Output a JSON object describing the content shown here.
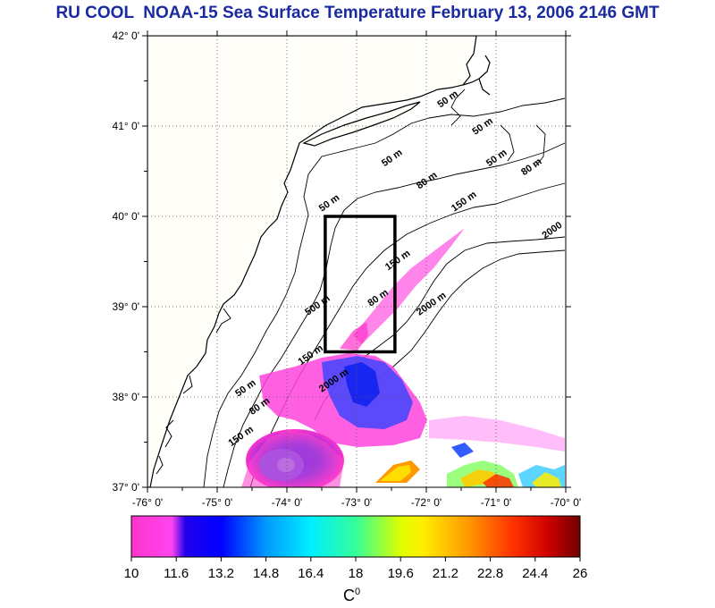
{
  "title": "RU COOL  NOAA-15 Sea Surface Temperature February 13, 2006 2146 GMT",
  "map": {
    "lon_range": [
      -76,
      -70
    ],
    "lat_range": [
      37,
      42
    ],
    "x_ticks": [
      "-76° 0'",
      "-75° 0'",
      "-74° 0'",
      "-73° 0'",
      "-72° 0'",
      "-71° 0'",
      "-70° 0'"
    ],
    "y_ticks": [
      "37° 0'",
      "38° 0'",
      "39° 0'",
      "40° 0'",
      "41° 0'",
      "42° 0'"
    ],
    "study_box": {
      "lon_min": -73.45,
      "lon_max": -72.45,
      "lat_min": 38.5,
      "lat_max": 40.0
    },
    "grid": "dotted",
    "contour_labels": [
      {
        "text": "50 m",
        "lon": -71.8,
        "lat": 41.2
      },
      {
        "text": "50 m",
        "lon": -71.1,
        "lat": 40.55
      },
      {
        "text": "50 m",
        "lon": -72.6,
        "lat": 40.55
      },
      {
        "text": "50 m",
        "lon": -73.5,
        "lat": 40.05
      },
      {
        "text": "50 m",
        "lon": -71.3,
        "lat": 40.9
      },
      {
        "text": "80 m",
        "lon": -72.1,
        "lat": 40.3
      },
      {
        "text": "80 m",
        "lon": -70.6,
        "lat": 40.45
      },
      {
        "text": "80 m",
        "lon": -72.8,
        "lat": 39.0
      },
      {
        "text": "150 m",
        "lon": -71.6,
        "lat": 40.05
      },
      {
        "text": "150 m",
        "lon": -72.55,
        "lat": 39.4
      },
      {
        "text": "2000",
        "lon": -70.3,
        "lat": 39.75
      },
      {
        "text": "2000 m",
        "lon": -72.1,
        "lat": 38.9
      },
      {
        "text": "2000 m",
        "lon": -73.5,
        "lat": 38.05
      },
      {
        "text": "500 m",
        "lon": -73.7,
        "lat": 38.9
      },
      {
        "text": "80 m",
        "lon": -74.5,
        "lat": 37.8
      },
      {
        "text": "50 m",
        "lon": -74.7,
        "lat": 38.0
      },
      {
        "text": "150 m",
        "lon": -74.8,
        "lat": 37.45
      },
      {
        "text": "150 m",
        "lon": -73.8,
        "lat": 38.35
      }
    ],
    "colors": {
      "land": "#fffef8",
      "ocean": "#ffffff",
      "contour": "#000000",
      "box": "#000000"
    }
  },
  "colorbar": {
    "min": 10,
    "max": 26,
    "tick_labels": [
      "10",
      "11.6",
      "13.2",
      "14.8",
      "16.4",
      "18",
      "19.6",
      "21.2",
      "22.8",
      "24.4",
      "26"
    ],
    "unit": "C",
    "unit_sup": "0",
    "colors": [
      "#ff33cc",
      "#ff44ee",
      "#0000ff",
      "#3377ff",
      "#00ccff",
      "#00ffcc",
      "#66ff66",
      "#ffff00",
      "#ff9900",
      "#ff3300",
      "#cc0000",
      "#7a0000"
    ]
  }
}
